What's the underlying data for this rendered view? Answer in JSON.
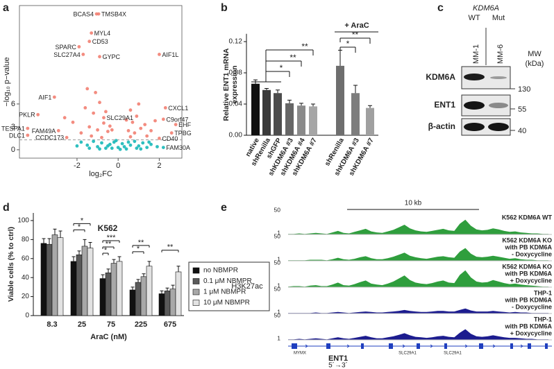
{
  "panel_labels": [
    "a",
    "b",
    "c",
    "d",
    "e"
  ],
  "chart_data": [
    {
      "type": "scatter",
      "xlabel": "log₂FC",
      "ylabel": "−log₁₀ p−value",
      "xlim": [
        -4.8,
        3.1
      ],
      "ylim": [
        -1.1,
        18.9
      ],
      "xticks": [
        -2,
        0,
        2
      ],
      "yticks": [
        0,
        3,
        6
      ],
      "threshold": 1.3,
      "series": [
        {
          "color": "#17b8b8",
          "x": [
            2.2,
            -1.8,
            -1.5,
            -1.2,
            -1.0,
            -0.8,
            -0.6,
            -0.4,
            -0.2,
            0,
            0.2,
            0.4,
            0.6,
            0.8,
            1.0,
            1.2,
            1.4,
            1.6,
            -1.4,
            -0.9,
            -0.3,
            0.3,
            0.9,
            1.5,
            -2.0,
            1.9,
            -0.1,
            0.1,
            -0.5,
            0.5,
            1.1
          ],
          "y": [
            0.3,
            1.0,
            0.6,
            1.1,
            0.4,
            0.9,
            0.2,
            0.7,
            1.0,
            0.3,
            0.8,
            0.1,
            0.6,
            1.1,
            0.5,
            0.9,
            0.3,
            0.7,
            0.2,
            0.1,
            0.2,
            0.4,
            0.2,
            1.0,
            0.5,
            0.4,
            1.2,
            0.05,
            0.5,
            1.0,
            0.1
          ],
          "labels": [
            "FAM30A",
            null,
            null,
            null,
            null,
            null,
            null,
            null,
            null,
            null,
            null,
            null,
            null,
            null,
            null,
            null,
            null,
            null,
            null,
            null,
            null,
            null,
            null,
            null,
            null,
            null,
            null,
            null,
            null,
            null,
            null
          ]
        },
        {
          "color": "#f28072",
          "x": [
            -1.05,
            -0.95,
            -1.3,
            -1.4,
            -1.9,
            -1.7,
            -0.9,
            2.0,
            -3.1,
            -3.9,
            -4.4,
            -2.9,
            -4.4,
            -2.5,
            -0.7,
            2.3,
            2.2,
            2.8,
            2.6,
            2.0,
            -1.6,
            -1.2,
            -0.9,
            -0.7,
            -1.4,
            -1.0,
            -0.5,
            -1.8,
            -2.2,
            -0.4,
            -1.1,
            -0.6,
            -2.6,
            -1.5,
            0.5,
            0.7,
            0.9,
            1.1,
            0.6,
            1.3,
            0.8,
            1.6,
            1.0,
            0.4,
            1.8,
            -0.3,
            -1.3,
            0.6,
            -0.8,
            1.4
          ],
          "y": [
            17.8,
            17.8,
            15.3,
            14.2,
            13.5,
            12.5,
            12.2,
            12.5,
            6.9,
            4.6,
            2.8,
            2.5,
            1.9,
            1.6,
            4.2,
            5.5,
            4.0,
            3.3,
            2.2,
            1.5,
            5.5,
            4.8,
            6.2,
            3.5,
            3.0,
            2.6,
            2.4,
            2.2,
            3.6,
            3.1,
            7.5,
            5.0,
            4.2,
            8.0,
            2.5,
            3.6,
            4.4,
            2.8,
            5.2,
            3.3,
            2.2,
            2.5,
            6.0,
            3.9,
            3.8,
            2.6,
            1.8,
            1.7,
            1.6,
            1.8
          ],
          "labels": [
            "BCAS4",
            "TMSB4X",
            "MYL4",
            "CD53",
            "SPARC",
            "SLC27A4",
            "GYPC",
            "AIF1L",
            "AIF1",
            "PKLR",
            "TESPA1",
            "FAM49A",
            "DLC1",
            "CCDC173",
            "SLC29A1",
            "CXCL1",
            "C9orf47",
            "EHF",
            "TPBG",
            "CD40",
            null,
            null,
            null,
            null,
            null,
            null,
            null,
            null,
            null,
            null,
            null,
            null,
            null,
            null,
            null,
            null,
            null,
            null,
            null,
            null,
            null,
            null,
            null,
            null,
            null,
            null,
            null,
            null,
            null,
            null
          ]
        }
      ]
    },
    {
      "type": "bar",
      "ylabel": [
        "Relative ENT1 mRNA",
        "expression"
      ],
      "categories": [
        "native",
        "shRenilla",
        "shGFP",
        "shKDM6A #3",
        "shKDM6A #4",
        "shKDM6A #7",
        "shRenilla",
        "shKDM6A #3",
        "shKDM6A #7"
      ],
      "values": [
        0.066,
        0.058,
        0.054,
        0.041,
        0.038,
        0.037,
        0.089,
        0.054,
        0.035
      ],
      "errors": [
        0.005,
        0.002,
        0.004,
        0.004,
        0.003,
        0.003,
        0.02,
        0.01,
        0.003
      ],
      "colors": [
        "#111111",
        "#3a3a3a",
        "#4d4d4d",
        "#666666",
        "#8a8a8a",
        "#a6a6a6",
        "#6e6e6e",
        "#7d7d7d",
        "#a0a0a0"
      ],
      "ylim": [
        0,
        0.13
      ],
      "yticks": [
        {
          "value": 0,
          "label": "0.00"
        },
        0.04,
        0.08,
        0.12
      ],
      "group_label": "+ AraC",
      "significance": [
        "*",
        "**",
        "**",
        "*",
        "**"
      ]
    },
    {
      "type": "grouped-bar",
      "title": "K562",
      "xlabel": "AraC (nM)",
      "ylabel": "Viable cells (% to ctrl)",
      "categories": [
        "8.3",
        "25",
        "75",
        "225",
        "675"
      ],
      "series": [
        {
          "name": "no NBMPR",
          "color": "#111111",
          "values": [
            76,
            57,
            39,
            27,
            23
          ],
          "errors": [
            5,
            5,
            4,
            3,
            3
          ]
        },
        {
          "name": "0.1 μM NBMPR",
          "color": "#5a5a5a",
          "values": [
            75,
            64,
            45,
            35,
            26
          ],
          "errors": [
            6,
            4,
            4,
            3,
            3
          ]
        },
        {
          "name": "1 μM NBMPR",
          "color": "#a8a8a8",
          "values": [
            85,
            73,
            55,
            41,
            28
          ],
          "errors": [
            6,
            7,
            4,
            3,
            4
          ]
        },
        {
          "name": "10 μM NBMPR",
          "color": "#e2e2e2",
          "values": [
            82,
            71,
            57,
            52,
            46
          ],
          "errors": [
            7,
            6,
            5,
            5,
            6
          ]
        }
      ],
      "ylim": [
        0,
        108
      ],
      "yticks": [
        0,
        20,
        40,
        60,
        80,
        100
      ],
      "significance": [
        "*",
        "*",
        "***",
        "**",
        "*",
        "**",
        "*",
        "**"
      ]
    }
  ],
  "blot": {
    "header": "KDM6A",
    "genotypes": [
      "WT",
      "Mut"
    ],
    "lines": [
      "MM-1",
      "MM-6"
    ],
    "proteins": [
      "KDM6A",
      "ENT1",
      "β-actin"
    ],
    "mw_title": "MW",
    "mw_unit": "(kDa)",
    "mw": [
      130,
      55,
      40
    ]
  },
  "tracks": {
    "scale_bar": "10 kb",
    "mark": "H3K27ac",
    "ylim": [
      1,
      50
    ],
    "samples": [
      {
        "label": [
          "K562 KDM6A WT"
        ],
        "color": "#2f9e3d",
        "signal": [
          2,
          2,
          3,
          2,
          3,
          4,
          3,
          2,
          5,
          8,
          4,
          3,
          6,
          9,
          12,
          7,
          5,
          4,
          7,
          10,
          15,
          20,
          13,
          9,
          7,
          6,
          8,
          10,
          12,
          9,
          8,
          22,
          30,
          18,
          11,
          9,
          10,
          13,
          11,
          8,
          6,
          7,
          5,
          4,
          3,
          3,
          2,
          2
        ]
      },
      {
        "label": [
          "K562 KDM6A KO",
          "with PB KDM6A",
          "- Doxycycline"
        ],
        "color": "#2f9e3d",
        "signal": [
          2,
          2,
          2,
          2,
          3,
          3,
          3,
          2,
          4,
          7,
          4,
          3,
          5,
          8,
          10,
          6,
          4,
          4,
          6,
          9,
          13,
          17,
          11,
          8,
          6,
          5,
          7,
          9,
          10,
          8,
          7,
          19,
          26,
          15,
          9,
          8,
          9,
          11,
          9,
          7,
          5,
          6,
          4,
          3,
          3,
          2,
          2,
          2
        ]
      },
      {
        "label": [
          "K562 KDM6A KO",
          "with PB KDM6A",
          "+ Doxycycline"
        ],
        "color": "#2f9e3d",
        "signal": [
          2,
          3,
          3,
          2,
          4,
          5,
          3,
          3,
          6,
          10,
          5,
          4,
          7,
          11,
          14,
          8,
          6,
          5,
          8,
          12,
          18,
          24,
          15,
          10,
          8,
          7,
          9,
          12,
          14,
          10,
          9,
          25,
          34,
          20,
          12,
          10,
          11,
          15,
          12,
          9,
          7,
          8,
          6,
          5,
          4,
          3,
          2,
          2
        ]
      },
      {
        "label": [
          "THP-1",
          "with PB KDM6A",
          "- Doxycycline"
        ],
        "color": "#1c1c8f",
        "signal": [
          2,
          2,
          2,
          2,
          2,
          3,
          2,
          2,
          3,
          4,
          3,
          2,
          3,
          4,
          5,
          4,
          3,
          3,
          4,
          5,
          6,
          8,
          6,
          5,
          4,
          4,
          5,
          6,
          6,
          5,
          5,
          8,
          11,
          7,
          5,
          5,
          5,
          6,
          5,
          4,
          3,
          4,
          3,
          3,
          2,
          2,
          2,
          2
        ]
      },
      {
        "label": [
          "THP-1",
          "with PB KDM6A",
          "+ Doxycycline"
        ],
        "color": "#1c1c8f",
        "signal": [
          2,
          2,
          3,
          2,
          3,
          4,
          3,
          2,
          4,
          6,
          4,
          3,
          5,
          7,
          9,
          6,
          4,
          4,
          6,
          8,
          11,
          14,
          10,
          7,
          6,
          5,
          6,
          8,
          9,
          7,
          6,
          15,
          22,
          13,
          8,
          7,
          8,
          10,
          8,
          6,
          5,
          5,
          4,
          3,
          3,
          2,
          2,
          2
        ]
      }
    ],
    "genes": [
      "MYMX",
      "SLC29A1",
      "SLC29A1"
    ],
    "gene": "ENT1",
    "strand": "5´→3´"
  }
}
